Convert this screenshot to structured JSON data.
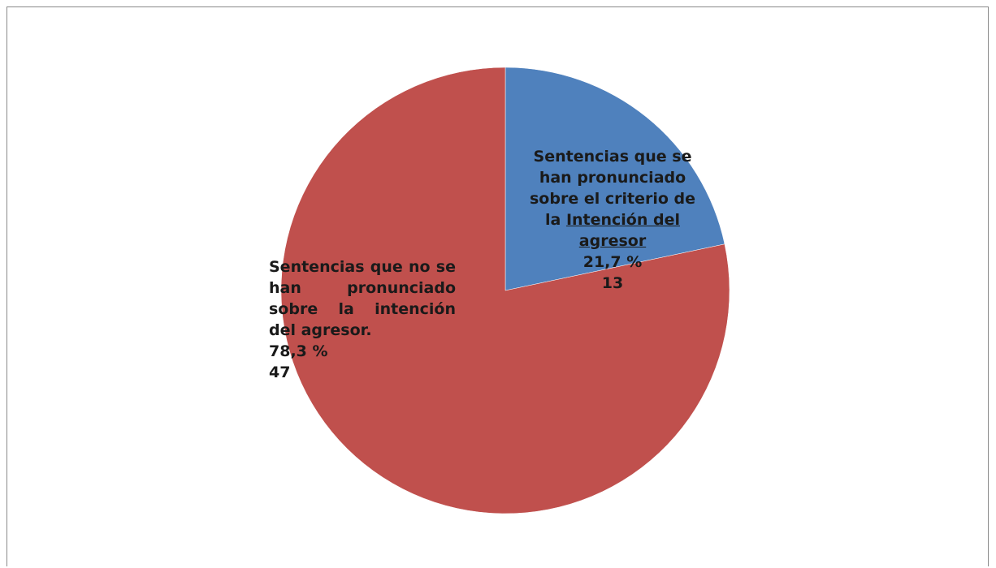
{
  "chart_data": {
    "type": "pie",
    "title": "",
    "slices": [
      {
        "label_parts": [
          "Sentencias que se han pronunciado sobre el criterio de la ",
          "Intención del agresor"
        ],
        "percent_label": "21,7 %",
        "value": 13,
        "percent": 21.7,
        "color": "#4f81bd"
      },
      {
        "label": "Sentencias que no se han pronunciado sobre la intención del agresor.",
        "percent_label": "78,3 %",
        "value": 47,
        "percent": 78.3,
        "color": "#c0504d"
      }
    ],
    "start_angle_deg": 0,
    "direction": "clockwise"
  }
}
